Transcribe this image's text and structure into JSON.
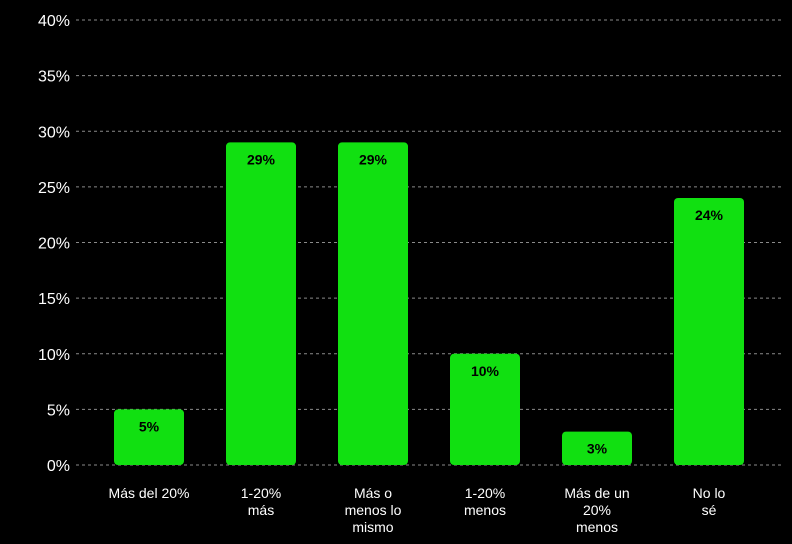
{
  "chart_data": {
    "type": "bar",
    "categories": [
      [
        "Más del 20%"
      ],
      [
        "1-20%",
        "más"
      ],
      [
        "Más o",
        "menos lo",
        "mismo"
      ],
      [
        "1-20%",
        "menos"
      ],
      [
        "Más de un",
        "20%",
        "menos"
      ],
      [
        "No lo",
        "sé"
      ]
    ],
    "values": [
      5,
      29,
      29,
      10,
      3,
      24
    ],
    "value_labels": [
      "5%",
      "29%",
      "29%",
      "10%",
      "3%",
      "24%"
    ],
    "yticks": [
      "0%",
      "5%",
      "10%",
      "15%",
      "20%",
      "25%",
      "30%",
      "35%",
      "40%"
    ],
    "ylim": [
      0,
      40
    ],
    "grid": true,
    "title": "",
    "xlabel": "",
    "ylabel": ""
  },
  "colors": {
    "background": "#000000",
    "bar": "#11e011",
    "grid": "#8a8a8a",
    "text": "#ffffff",
    "value_label": "#000000"
  }
}
